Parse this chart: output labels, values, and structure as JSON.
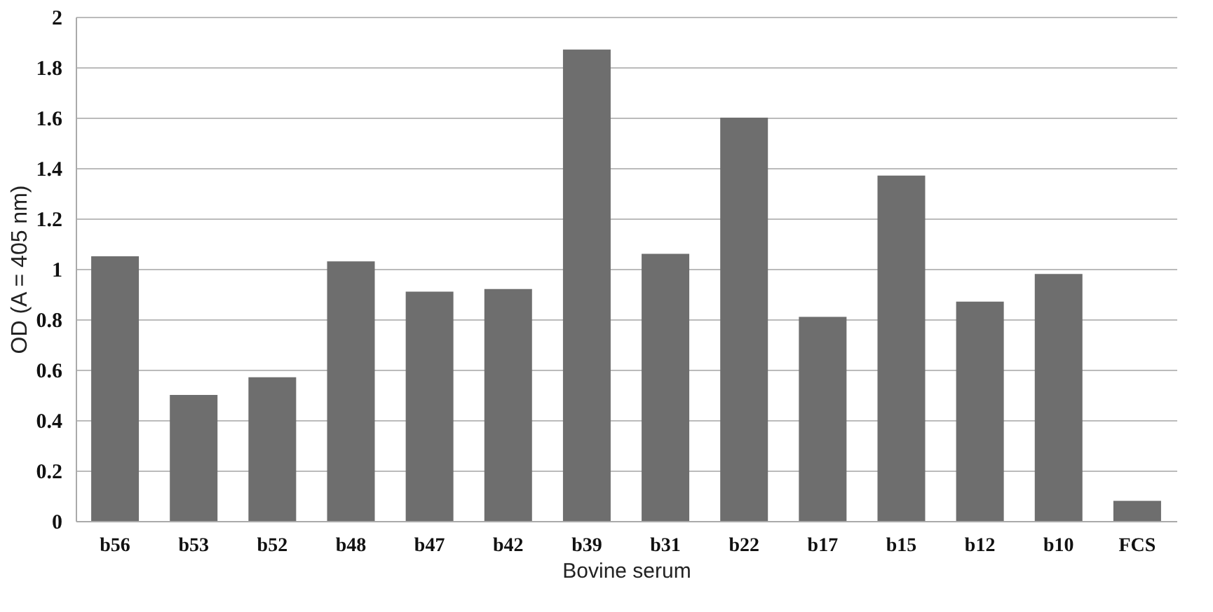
{
  "chart_data": {
    "type": "bar",
    "xlabel": "Bovine serum",
    "ylabel": "OD (A = 405 nm)",
    "categories": [
      "b56",
      "b53",
      "b52",
      "b48",
      "b47",
      "b42",
      "b39",
      "b31",
      "b22",
      "b17",
      "b15",
      "b12",
      "b10",
      "FCS"
    ],
    "values": [
      1.05,
      0.5,
      0.57,
      1.03,
      0.91,
      0.92,
      1.87,
      1.06,
      1.6,
      0.81,
      1.37,
      0.87,
      0.98,
      0.08
    ],
    "color": "#6e6e6e",
    "ylim": [
      0,
      2
    ],
    "yticks": [
      0,
      0.2,
      0.4,
      0.6,
      0.8,
      1,
      1.2,
      1.4,
      1.6,
      1.8,
      2
    ],
    "grid": "y"
  }
}
